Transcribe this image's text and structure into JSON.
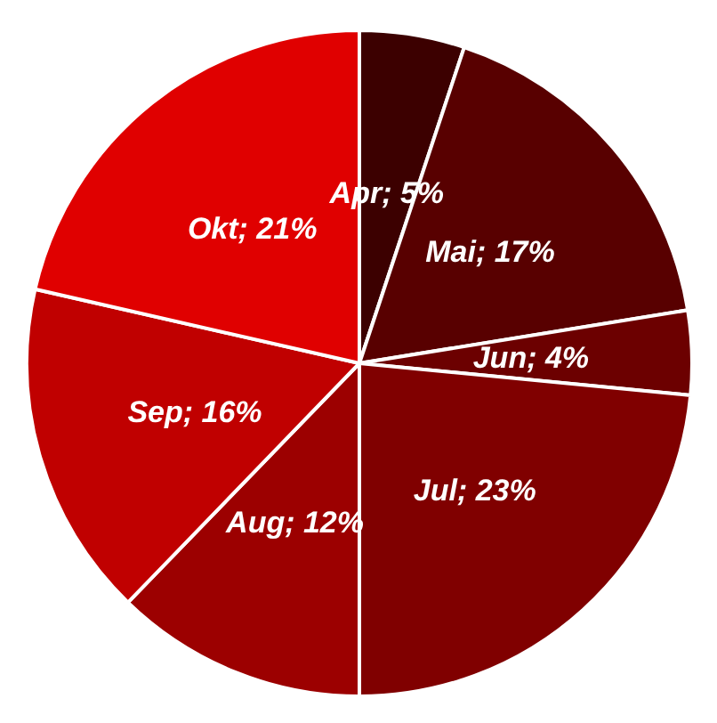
{
  "chart_data": {
    "type": "pie",
    "categories": [
      "Apr",
      "Mai",
      "Jun",
      "Jul",
      "Aug",
      "Sep",
      "Okt"
    ],
    "values": [
      5,
      17,
      4,
      23,
      12,
      16,
      21
    ],
    "value_labels": [
      "5%",
      "17%",
      "4%",
      "23%",
      "12%",
      "16%",
      "21%"
    ],
    "colors": [
      "#3c0000",
      "#580000",
      "#6c0000",
      "#800000",
      "#9c0000",
      "#c00000",
      "#e00000"
    ],
    "legend": false
  }
}
